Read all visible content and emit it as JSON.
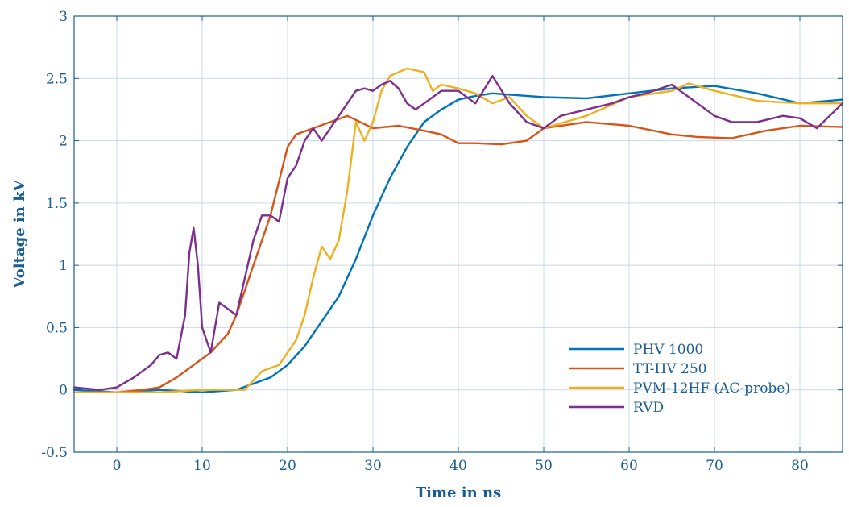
{
  "chart_data": {
    "type": "line",
    "title": "",
    "xlabel": "Time in ns",
    "ylabel": "Voltage in kV",
    "xlim": [
      -5,
      85
    ],
    "ylim": [
      -0.5,
      3
    ],
    "xticks": [
      0,
      10,
      20,
      30,
      40,
      50,
      60,
      70,
      80
    ],
    "yticks": [
      -0.5,
      0,
      0.5,
      1,
      1.5,
      2,
      2.5,
      3
    ],
    "xtick_labels": [
      "0",
      "10",
      "20",
      "30",
      "40",
      "50",
      "60",
      "70",
      "80"
    ],
    "ytick_labels": [
      "-0.5",
      "0",
      "0.5",
      "1",
      "1.5",
      "2",
      "2.5",
      "3"
    ],
    "grid": true,
    "legend_position": "bottom-right",
    "series": [
      {
        "name": "PHV 1000",
        "color": "#0072BD",
        "x": [
          -5,
          0,
          5,
          10,
          14,
          16,
          18,
          20,
          22,
          24,
          26,
          28,
          30,
          32,
          34,
          36,
          38,
          40,
          42,
          44,
          46,
          48,
          50,
          55,
          60,
          65,
          70,
          75,
          80,
          85
        ],
        "y": [
          0.0,
          -0.02,
          0.0,
          -0.02,
          0.0,
          0.05,
          0.1,
          0.2,
          0.35,
          0.55,
          0.75,
          1.05,
          1.4,
          1.7,
          1.95,
          2.15,
          2.25,
          2.33,
          2.36,
          2.38,
          2.37,
          2.36,
          2.35,
          2.34,
          2.38,
          2.42,
          2.44,
          2.38,
          2.3,
          2.33
        ]
      },
      {
        "name": "TT-HV 250",
        "color": "#D95319",
        "x": [
          -5,
          0,
          3,
          5,
          7,
          9,
          11,
          13,
          14,
          16,
          18,
          20,
          21,
          23,
          25,
          27,
          30,
          33,
          36,
          38,
          40,
          42,
          45,
          48,
          50,
          55,
          60,
          65,
          68,
          72,
          76,
          80,
          85
        ],
        "y": [
          -0.02,
          -0.02,
          0.0,
          0.02,
          0.1,
          0.2,
          0.3,
          0.45,
          0.6,
          1.0,
          1.4,
          1.95,
          2.05,
          2.1,
          2.15,
          2.2,
          2.1,
          2.12,
          2.08,
          2.05,
          1.98,
          1.98,
          1.97,
          2.0,
          2.1,
          2.15,
          2.12,
          2.05,
          2.03,
          2.02,
          2.08,
          2.12,
          2.11
        ]
      },
      {
        "name": "PVM-12HF (AC-probe)",
        "color": "#EDB120",
        "x": [
          -5,
          0,
          5,
          10,
          15,
          17,
          19,
          21,
          22,
          23,
          24,
          25,
          26,
          27,
          28,
          29,
          30,
          31,
          32,
          34,
          36,
          37,
          38,
          40,
          42,
          44,
          46,
          48,
          50,
          55,
          60,
          65,
          67,
          70,
          75,
          80,
          85
        ],
        "y": [
          -0.02,
          -0.02,
          -0.02,
          0.0,
          0.0,
          0.15,
          0.2,
          0.4,
          0.6,
          0.9,
          1.15,
          1.05,
          1.2,
          1.6,
          2.15,
          2.0,
          2.15,
          2.4,
          2.52,
          2.58,
          2.55,
          2.4,
          2.45,
          2.42,
          2.38,
          2.3,
          2.35,
          2.2,
          2.1,
          2.2,
          2.35,
          2.4,
          2.46,
          2.4,
          2.32,
          2.3,
          2.3
        ]
      },
      {
        "name": "RVD",
        "color": "#7E2F8E",
        "x": [
          -5,
          -2,
          0,
          2,
          4,
          5,
          6,
          7,
          8,
          8.5,
          9,
          9.5,
          10,
          11,
          12,
          13,
          14,
          15,
          16,
          17,
          18,
          19,
          20,
          21,
          22,
          23,
          24,
          25,
          26,
          27,
          28,
          29,
          30,
          31,
          32,
          33,
          34,
          35,
          36,
          38,
          40,
          42,
          44,
          46,
          48,
          50,
          52,
          55,
          58,
          60,
          62,
          65,
          68,
          70,
          72,
          75,
          78,
          80,
          82,
          85
        ],
        "y": [
          0.02,
          0.0,
          0.02,
          0.1,
          0.2,
          0.28,
          0.3,
          0.25,
          0.6,
          1.1,
          1.3,
          1.0,
          0.5,
          0.3,
          0.7,
          0.65,
          0.6,
          0.9,
          1.2,
          1.4,
          1.4,
          1.35,
          1.7,
          1.8,
          2.0,
          2.1,
          2.0,
          2.1,
          2.2,
          2.3,
          2.4,
          2.42,
          2.4,
          2.45,
          2.48,
          2.42,
          2.3,
          2.25,
          2.3,
          2.4,
          2.4,
          2.3,
          2.52,
          2.3,
          2.15,
          2.1,
          2.2,
          2.25,
          2.3,
          2.35,
          2.38,
          2.45,
          2.3,
          2.2,
          2.15,
          2.15,
          2.2,
          2.18,
          2.1,
          2.3
        ]
      }
    ]
  }
}
